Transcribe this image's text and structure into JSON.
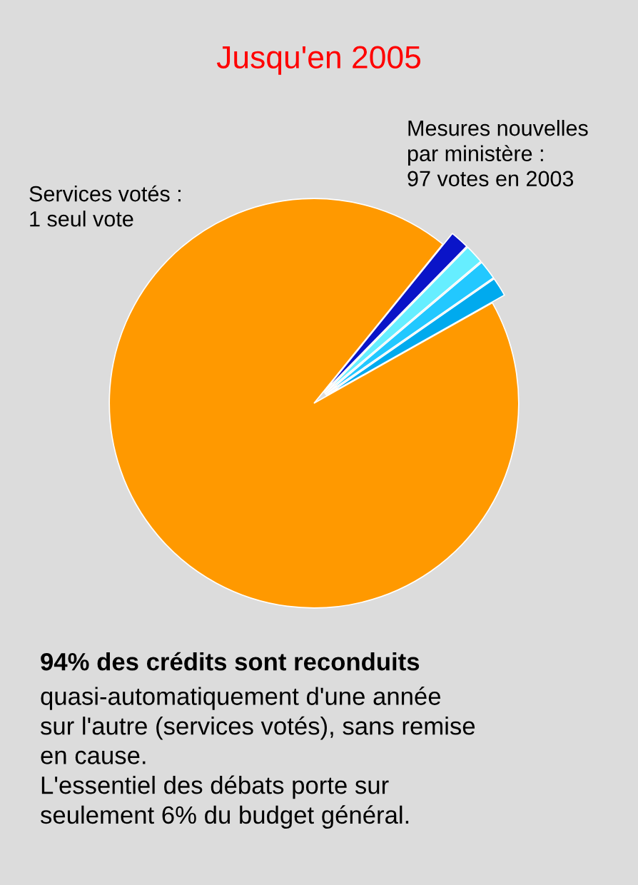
{
  "chart_data": {
    "type": "pie",
    "title": "Jusqu'en 2005",
    "categories": [
      null,
      null,
      null,
      null,
      null
    ],
    "values": [
      94,
      1.5,
      1.5,
      1.5,
      1.5
    ],
    "colors": [
      "#ff9900",
      "#00aaee",
      "#22c8ff",
      "#66eeff",
      "#0a14c8"
    ],
    "annotations": [
      "Services votés :\n1 seul vote",
      "Mesures nouvelles\npar ministère :\n97 votes en 2003",
      "94% des crédits sont reconduits",
      "quasi-automatiquement d'une année\nsur l'autre (services votés), sans remise\nen cause.\nL'essentiel des débats porte sur\nseulement 6% du budget général."
    ],
    "legend": false
  }
}
